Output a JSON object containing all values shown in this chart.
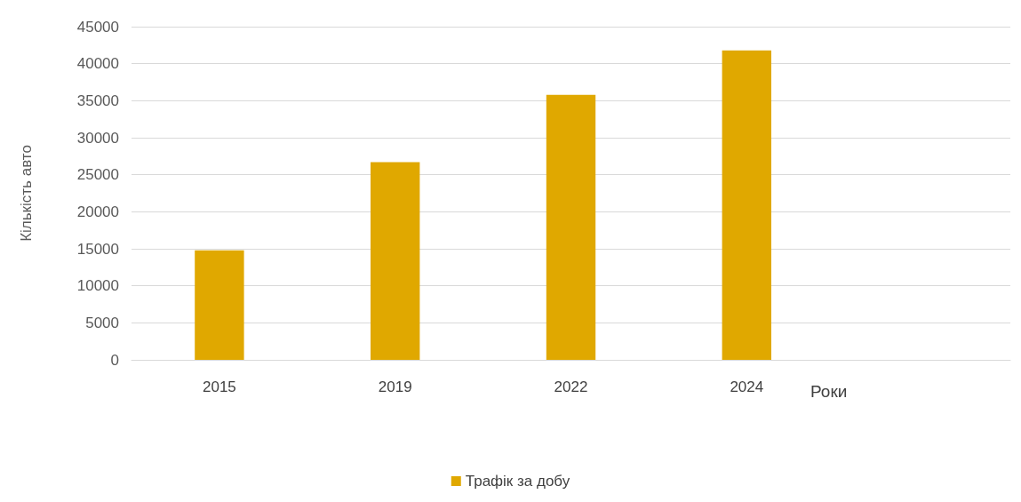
{
  "chart_data": {
    "type": "bar",
    "xlabel": "Роки",
    "ylabel": "Кількість авто",
    "categories": [
      "2015",
      "2019",
      "2022",
      "2024",
      null
    ],
    "series": [
      {
        "name": "Трафік за добу",
        "color": "#e0a800",
        "values": [
          14800,
          26700,
          35800,
          41800,
          null
        ]
      }
    ],
    "ylim": [
      0,
      45000
    ],
    "yticks": [
      0,
      5000,
      10000,
      15000,
      20000,
      25000,
      30000,
      35000,
      40000,
      45000
    ],
    "grid": "y",
    "legend": "bottom"
  }
}
